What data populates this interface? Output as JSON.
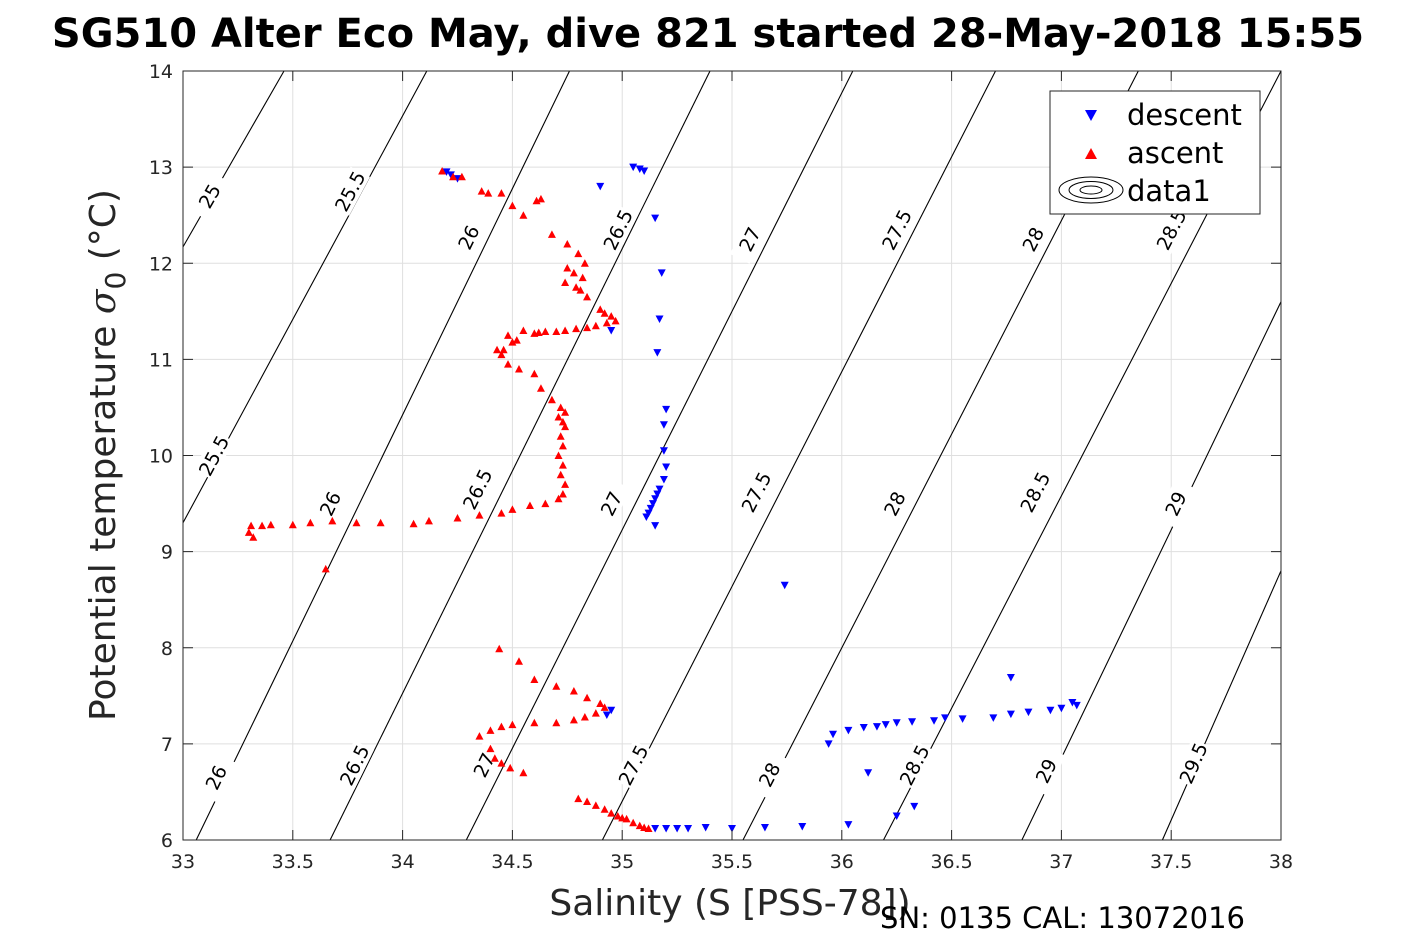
{
  "chart_data": {
    "type": "scatter",
    "title": "SG510 Alter Eco May, dive 821 started 28-May-2018 15:55",
    "xlabel": "Salinity (S [PSS-78])",
    "ylabel_main": "Potential temperature ",
    "ylabel_sym": "σ",
    "ylabel_sub": "0",
    "ylabel_unit": " (°C)",
    "footer": "SN: 0135  CAL: 13072016",
    "xlim": [
      33,
      38
    ],
    "ylim": [
      6,
      14
    ],
    "xticks": [
      33,
      33.5,
      34,
      34.5,
      35,
      35.5,
      36,
      36.5,
      37,
      37.5,
      38
    ],
    "xtick_labels": [
      "33",
      "33.5",
      "34",
      "34.5",
      "35",
      "35.5",
      "36",
      "36.5",
      "37",
      "37.5",
      "38"
    ],
    "yticks": [
      6,
      7,
      8,
      9,
      10,
      11,
      12,
      13,
      14
    ],
    "ytick_labels": [
      "6",
      "7",
      "8",
      "9",
      "10",
      "11",
      "12",
      "13",
      "14"
    ],
    "grid": true,
    "legend_position": "top-right",
    "legend": [
      {
        "label": "descent",
        "marker": "triangle-down",
        "color": "#0000ff"
      },
      {
        "label": "ascent",
        "marker": "triangle-up",
        "color": "#ff0000"
      },
      {
        "label": "data1",
        "marker": "contour",
        "color": "#000000"
      }
    ],
    "contours": [
      {
        "level": 25,
        "label": "25",
        "points": [
          [
            33.46,
            14
          ],
          [
            33,
            12.17
          ]
        ],
        "labels": [
          {
            "x": 33.12,
            "y": 12.7,
            "text": "25"
          }
        ]
      },
      {
        "level": 25.5,
        "label": "25.5",
        "points": [
          [
            34.11,
            14
          ],
          [
            33,
            9.3
          ]
        ],
        "labels": [
          {
            "x": 33.76,
            "y": 12.75,
            "text": "25.5"
          },
          {
            "x": 33.14,
            "y": 10.0,
            "text": "25.5"
          }
        ]
      },
      {
        "level": 26,
        "label": "26",
        "points": [
          [
            34.76,
            14
          ],
          [
            33.06,
            6
          ]
        ],
        "labels": [
          {
            "x": 34.3,
            "y": 12.27,
            "text": "26"
          },
          {
            "x": 33.67,
            "y": 9.5,
            "text": "26"
          },
          {
            "x": 33.15,
            "y": 6.65,
            "text": "26"
          }
        ]
      },
      {
        "level": 26.5,
        "label": "26.5",
        "points": [
          [
            35.4,
            14
          ],
          [
            33.67,
            6
          ]
        ],
        "labels": [
          {
            "x": 34.98,
            "y": 12.35,
            "text": "26.5"
          },
          {
            "x": 34.34,
            "y": 9.65,
            "text": "26.5"
          },
          {
            "x": 33.78,
            "y": 6.78,
            "text": "26.5"
          }
        ]
      },
      {
        "level": 27,
        "label": "27",
        "points": [
          [
            36.05,
            14
          ],
          [
            34.29,
            6
          ]
        ],
        "labels": [
          {
            "x": 35.58,
            "y": 12.25,
            "text": "27"
          },
          {
            "x": 34.95,
            "y": 9.5,
            "text": "27"
          },
          {
            "x": 34.37,
            "y": 6.78,
            "text": "27"
          }
        ]
      },
      {
        "level": 27.5,
        "label": "27.5",
        "points": [
          [
            36.7,
            14
          ],
          [
            34.91,
            6
          ]
        ],
        "labels": [
          {
            "x": 36.25,
            "y": 12.35,
            "text": "27.5"
          },
          {
            "x": 35.61,
            "y": 9.62,
            "text": "27.5"
          },
          {
            "x": 35.05,
            "y": 6.78,
            "text": "27.5"
          }
        ]
      },
      {
        "level": 28,
        "label": "28",
        "points": [
          [
            37.35,
            14
          ],
          [
            35.55,
            6
          ]
        ],
        "labels": [
          {
            "x": 36.87,
            "y": 12.25,
            "text": "28"
          },
          {
            "x": 36.24,
            "y": 9.5,
            "text": "28"
          },
          {
            "x": 35.67,
            "y": 6.68,
            "text": "28"
          }
        ]
      },
      {
        "level": 28.5,
        "label": "28.5",
        "points": [
          [
            38,
            14
          ],
          [
            36.19,
            6
          ]
        ],
        "labels": [
          {
            "x": 37.5,
            "y": 12.35,
            "text": "28.5"
          },
          {
            "x": 36.88,
            "y": 9.62,
            "text": "28.5"
          },
          {
            "x": 36.33,
            "y": 6.78,
            "text": "28.5"
          }
        ]
      },
      {
        "level": 29,
        "label": "29",
        "points": [
          [
            38,
            11.6
          ],
          [
            36.82,
            6
          ]
        ],
        "labels": [
          {
            "x": 37.52,
            "y": 9.5,
            "text": "29"
          },
          {
            "x": 36.93,
            "y": 6.72,
            "text": "29"
          }
        ]
      },
      {
        "level": 29.5,
        "label": "29.5",
        "points": [
          [
            38,
            8.8
          ],
          [
            37.46,
            6
          ]
        ],
        "labels": [
          {
            "x": 37.6,
            "y": 6.8,
            "text": "29.5"
          }
        ]
      }
    ],
    "series": [
      {
        "name": "descent",
        "marker": "triangle-down",
        "color": "#0000ff",
        "points": [
          [
            34.2,
            12.95
          ],
          [
            34.22,
            12.92
          ],
          [
            34.25,
            12.88
          ],
          [
            34.9,
            12.8
          ],
          [
            35.05,
            13.0
          ],
          [
            35.08,
            12.98
          ],
          [
            35.1,
            12.96
          ],
          [
            35.15,
            12.47
          ],
          [
            35.18,
            11.9
          ],
          [
            35.17,
            11.42
          ],
          [
            35.16,
            11.07
          ],
          [
            34.95,
            11.3
          ],
          [
            35.2,
            10.48
          ],
          [
            35.19,
            10.32
          ],
          [
            35.19,
            10.05
          ],
          [
            35.2,
            9.88
          ],
          [
            35.19,
            9.75
          ],
          [
            35.17,
            9.65
          ],
          [
            35.16,
            9.6
          ],
          [
            35.15,
            9.55
          ],
          [
            35.14,
            9.5
          ],
          [
            35.13,
            9.45
          ],
          [
            35.12,
            9.4
          ],
          [
            35.11,
            9.36
          ],
          [
            35.15,
            9.27
          ],
          [
            35.74,
            8.65
          ],
          [
            34.95,
            7.35
          ],
          [
            34.93,
            7.3
          ],
          [
            35.15,
            6.12
          ],
          [
            35.2,
            6.12
          ],
          [
            35.25,
            6.12
          ],
          [
            35.3,
            6.12
          ],
          [
            35.38,
            6.13
          ],
          [
            35.5,
            6.12
          ],
          [
            35.65,
            6.13
          ],
          [
            35.82,
            6.14
          ],
          [
            36.03,
            6.16
          ],
          [
            36.25,
            6.25
          ],
          [
            36.33,
            6.35
          ],
          [
            36.12,
            6.7
          ],
          [
            35.94,
            7.0
          ],
          [
            35.96,
            7.1
          ],
          [
            36.03,
            7.14
          ],
          [
            36.1,
            7.17
          ],
          [
            36.16,
            7.18
          ],
          [
            36.2,
            7.2
          ],
          [
            36.25,
            7.22
          ],
          [
            36.32,
            7.23
          ],
          [
            36.42,
            7.24
          ],
          [
            36.47,
            7.27
          ],
          [
            36.55,
            7.26
          ],
          [
            36.69,
            7.27
          ],
          [
            36.77,
            7.31
          ],
          [
            36.85,
            7.33
          ],
          [
            36.95,
            7.35
          ],
          [
            37.0,
            7.37
          ],
          [
            37.05,
            7.43
          ],
          [
            37.07,
            7.4
          ],
          [
            36.77,
            7.69
          ]
        ]
      },
      {
        "name": "ascent",
        "marker": "triangle-up",
        "color": "#ff0000",
        "points": [
          [
            34.18,
            12.96
          ],
          [
            34.23,
            12.9
          ],
          [
            34.27,
            12.9
          ],
          [
            34.36,
            12.75
          ],
          [
            34.39,
            12.73
          ],
          [
            34.45,
            12.73
          ],
          [
            34.5,
            12.6
          ],
          [
            34.55,
            12.5
          ],
          [
            34.61,
            12.65
          ],
          [
            34.63,
            12.67
          ],
          [
            34.68,
            12.3
          ],
          [
            34.75,
            12.2
          ],
          [
            34.8,
            12.1
          ],
          [
            34.83,
            12.0
          ],
          [
            34.75,
            11.95
          ],
          [
            34.78,
            11.9
          ],
          [
            34.82,
            11.85
          ],
          [
            34.74,
            11.8
          ],
          [
            34.79,
            11.75
          ],
          [
            34.81,
            11.72
          ],
          [
            34.84,
            11.65
          ],
          [
            34.9,
            11.52
          ],
          [
            34.92,
            11.48
          ],
          [
            34.95,
            11.45
          ],
          [
            34.97,
            11.4
          ],
          [
            34.93,
            11.38
          ],
          [
            34.88,
            11.35
          ],
          [
            34.84,
            11.33
          ],
          [
            34.79,
            11.32
          ],
          [
            34.74,
            11.3
          ],
          [
            34.7,
            11.29
          ],
          [
            34.65,
            11.29
          ],
          [
            34.62,
            11.28
          ],
          [
            34.6,
            11.27
          ],
          [
            34.55,
            11.3
          ],
          [
            34.52,
            11.2
          ],
          [
            34.5,
            11.18
          ],
          [
            34.48,
            11.25
          ],
          [
            34.46,
            11.1
          ],
          [
            34.45,
            11.05
          ],
          [
            34.43,
            11.1
          ],
          [
            34.48,
            10.95
          ],
          [
            34.53,
            10.9
          ],
          [
            34.6,
            10.85
          ],
          [
            34.63,
            10.7
          ],
          [
            34.68,
            10.58
          ],
          [
            34.72,
            10.5
          ],
          [
            34.74,
            10.45
          ],
          [
            34.71,
            10.4
          ],
          [
            34.73,
            10.35
          ],
          [
            34.74,
            10.3
          ],
          [
            34.72,
            10.2
          ],
          [
            34.73,
            10.1
          ],
          [
            34.71,
            10.0
          ],
          [
            34.73,
            9.9
          ],
          [
            34.72,
            9.8
          ],
          [
            34.74,
            9.7
          ],
          [
            34.73,
            9.6
          ],
          [
            34.71,
            9.55
          ],
          [
            34.65,
            9.5
          ],
          [
            34.58,
            9.48
          ],
          [
            34.5,
            9.44
          ],
          [
            34.45,
            9.4
          ],
          [
            34.35,
            9.38
          ],
          [
            34.25,
            9.35
          ],
          [
            34.12,
            9.32
          ],
          [
            34.05,
            9.29
          ],
          [
            33.9,
            9.3
          ],
          [
            33.79,
            9.3
          ],
          [
            33.68,
            9.32
          ],
          [
            33.58,
            9.3
          ],
          [
            33.5,
            9.28
          ],
          [
            33.4,
            9.28
          ],
          [
            33.36,
            9.27
          ],
          [
            33.31,
            9.27
          ],
          [
            33.3,
            9.2
          ],
          [
            33.32,
            9.15
          ],
          [
            33.65,
            8.82
          ],
          [
            34.44,
            7.99
          ],
          [
            34.53,
            7.86
          ],
          [
            34.6,
            7.67
          ],
          [
            34.7,
            7.6
          ],
          [
            34.78,
            7.55
          ],
          [
            34.84,
            7.48
          ],
          [
            34.9,
            7.42
          ],
          [
            34.92,
            7.38
          ],
          [
            34.88,
            7.32
          ],
          [
            34.83,
            7.28
          ],
          [
            34.78,
            7.25
          ],
          [
            34.7,
            7.22
          ],
          [
            34.6,
            7.22
          ],
          [
            34.5,
            7.2
          ],
          [
            34.45,
            7.18
          ],
          [
            34.4,
            7.14
          ],
          [
            34.35,
            7.08
          ],
          [
            34.4,
            6.95
          ],
          [
            34.42,
            6.85
          ],
          [
            34.45,
            6.8
          ],
          [
            34.49,
            6.75
          ],
          [
            34.55,
            6.7
          ],
          [
            34.8,
            6.43
          ],
          [
            34.84,
            6.4
          ],
          [
            34.88,
            6.36
          ],
          [
            34.92,
            6.32
          ],
          [
            34.95,
            6.28
          ],
          [
            34.98,
            6.25
          ],
          [
            35.0,
            6.23
          ],
          [
            35.02,
            6.22
          ],
          [
            35.05,
            6.18
          ],
          [
            35.08,
            6.15
          ],
          [
            35.1,
            6.13
          ],
          [
            35.12,
            6.12
          ]
        ]
      }
    ]
  }
}
